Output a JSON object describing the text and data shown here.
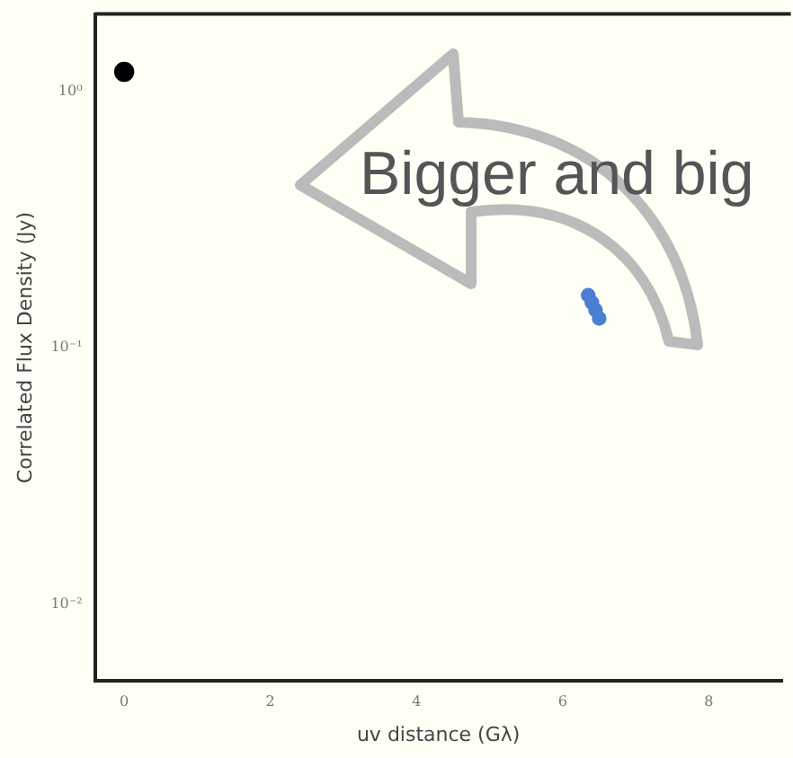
{
  "chart_data": {
    "type": "scatter",
    "xlabel": "uv distance (Gλ)",
    "ylabel": "Correlated Flux Density (Jy)",
    "log": "y",
    "xlim": [
      -0.4,
      9
    ],
    "ylim": [
      0.005,
      2
    ],
    "xticks": [
      0,
      2,
      4,
      6,
      8
    ],
    "yticks": [
      {
        "value": 1,
        "label": "10⁰"
      },
      {
        "value": 0.1,
        "label": "10⁻¹"
      },
      {
        "value": 0.01,
        "label": "10⁻²"
      }
    ],
    "grid": false,
    "marker": "circle",
    "series": [
      {
        "color": "#000000",
        "x": [
          0
        ],
        "values": [
          1.19
        ]
      },
      {
        "color": "#4a7fd0",
        "x": [
          6.35,
          6.4,
          6.45,
          6.5
        ],
        "values": [
          0.16,
          0.15,
          0.14,
          0.13
        ]
      }
    ],
    "annotations": [
      "Bigger and big"
    ]
  }
}
